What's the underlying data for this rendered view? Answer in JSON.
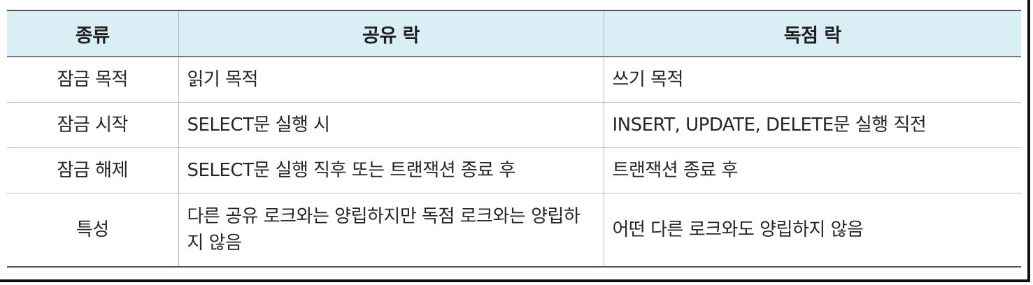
{
  "table": {
    "headers": [
      "종류",
      "공유 락",
      "독점 락"
    ],
    "rows": [
      {
        "label": "잠금 목적",
        "shared": "읽기 목적",
        "exclusive": "쓰기 목적"
      },
      {
        "label": "잠금 시작",
        "shared": "SELECT문 실행 시",
        "exclusive": "INSERT, UPDATE, DELETE문 실행 직전"
      },
      {
        "label": "잠금 해제",
        "shared": "SELECT문 실행 직후 또는 트랜잭션 종료 후",
        "exclusive": "트랜잭션 종료 후"
      },
      {
        "label": "특성",
        "shared": "다른 공유 로크와는 양립하지만 독점 로크와는 양립하지 않음",
        "exclusive": "어떤 다른 로크와도 양립하지 않음"
      }
    ]
  }
}
